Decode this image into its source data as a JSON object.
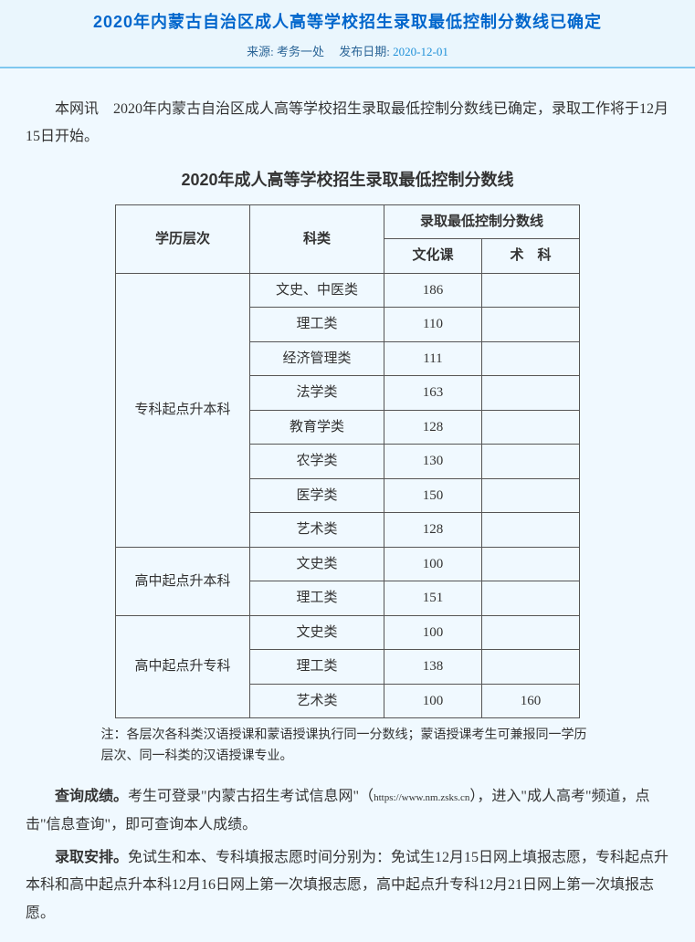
{
  "header": {
    "title": "2020年内蒙古自治区成人高等学校招生录取最低控制分数线已确定",
    "source_label": "来源:",
    "source": "考务一处",
    "date_label": "发布日期:",
    "date": "2020-12-01"
  },
  "intro": "本网讯　2020年内蒙古自治区成人高等学校招生录取最低控制分数线已确定，录取工作将于12月15日开始。",
  "table_title": "2020年成人高等学校招生录取最低控制分数线",
  "table": {
    "headers": {
      "level": "学历层次",
      "category": "科类",
      "score_group": "录取最低控制分数线",
      "wenhua": "文化课",
      "shuke": "术　科"
    },
    "groups": [
      {
        "level": "专科起点升本科",
        "rows": [
          {
            "cat": "文史、中医类",
            "wh": "186",
            "sk": ""
          },
          {
            "cat": "理工类",
            "wh": "110",
            "sk": ""
          },
          {
            "cat": "经济管理类",
            "wh": "111",
            "sk": ""
          },
          {
            "cat": "法学类",
            "wh": "163",
            "sk": ""
          },
          {
            "cat": "教育学类",
            "wh": "128",
            "sk": ""
          },
          {
            "cat": "农学类",
            "wh": "130",
            "sk": ""
          },
          {
            "cat": "医学类",
            "wh": "150",
            "sk": ""
          },
          {
            "cat": "艺术类",
            "wh": "128",
            "sk": ""
          }
        ]
      },
      {
        "level": "高中起点升本科",
        "rows": [
          {
            "cat": "文史类",
            "wh": "100",
            "sk": ""
          },
          {
            "cat": "理工类",
            "wh": "151",
            "sk": ""
          }
        ]
      },
      {
        "level": "高中起点升专科",
        "rows": [
          {
            "cat": "文史类",
            "wh": "100",
            "sk": ""
          },
          {
            "cat": "理工类",
            "wh": "138",
            "sk": ""
          },
          {
            "cat": "艺术类",
            "wh": "100",
            "sk": "160"
          }
        ]
      }
    ]
  },
  "note": "注：各层次各科类汉语授课和蒙语授课执行同一分数线；蒙语授课考生可兼报同一学历层次、同一科类的汉语授课专业。",
  "para_query_bold": "查询成绩。",
  "para_query_rest_a": "考生可登录\"内蒙古招生考试信息网\"（",
  "para_query_url": "https://www.nm.zsks.cn",
  "para_query_rest_b": "），进入\"成人高考\"频道，点击\"信息查询\"，即可查询本人成绩。",
  "para_arr_bold": "录取安排。",
  "para_arr_rest": "免试生和本、专科填报志愿时间分别为：免试生12月15日网上填报志愿，专科起点升本科和高中起点升本科12月16日网上第一次填报志愿，高中起点升专科12月21日网上第一次填报志愿。"
}
